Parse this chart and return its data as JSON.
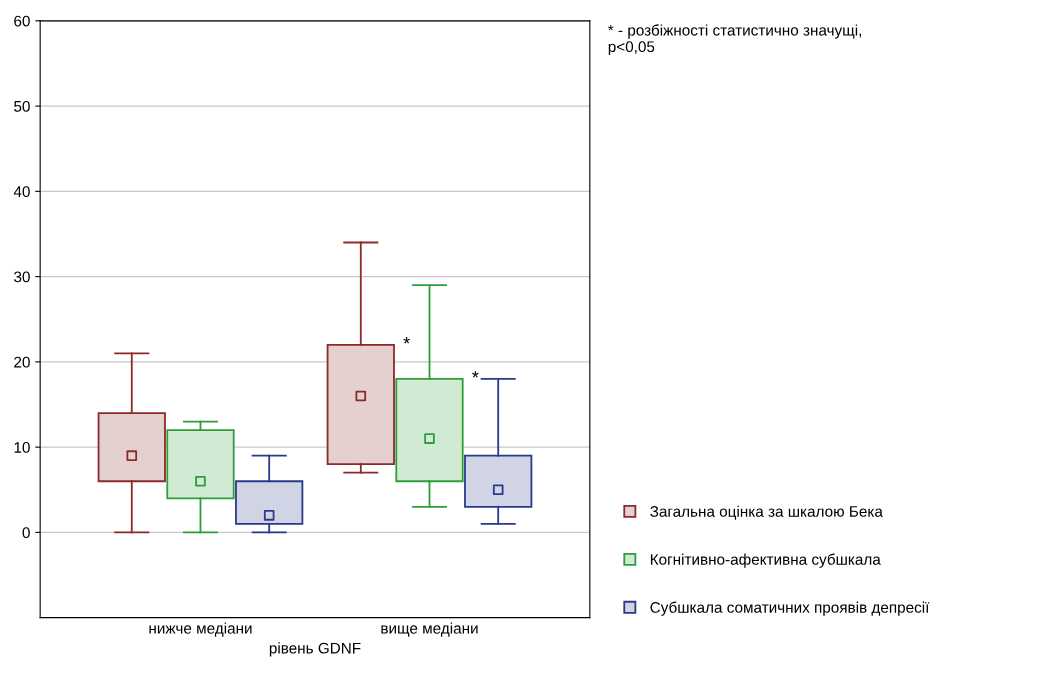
{
  "chart_data": {
    "type": "box",
    "xlabel": "рівень GDNF",
    "categories": [
      "нижче медіани",
      "вище медіани"
    ],
    "ylim": [
      -10,
      60
    ],
    "yticks": [
      0,
      10,
      20,
      30,
      40,
      50,
      60
    ],
    "grid": "y",
    "legend": "bottom right",
    "marker": "square",
    "series": [
      {
        "name": "Загальна оцінка за шкалою Бека",
        "color": "#8b2a2a",
        "boxes": [
          {
            "low": 0,
            "q1": 6,
            "median": 9,
            "q3": 14,
            "high": 21
          },
          {
            "low": 7,
            "q1": 8,
            "median": 16,
            "q3": 22,
            "high": 34
          }
        ]
      },
      {
        "name": "Когнітивно-афективна субшкала",
        "color": "#2e9e3a",
        "boxes": [
          {
            "low": 0,
            "q1": 4,
            "median": 6,
            "q3": 12,
            "high": 13
          },
          {
            "low": 3,
            "q1": 6,
            "median": 11,
            "q3": 18,
            "high": 29
          }
        ]
      },
      {
        "name": "Субшкала соматичних проявів депресії",
        "color": "#2a3a8a",
        "boxes": [
          {
            "low": 0,
            "q1": 1,
            "median": 2,
            "q3": 6,
            "high": 9
          },
          {
            "low": 1,
            "q1": 3,
            "median": 5,
            "q3": 9,
            "high": 18
          }
        ]
      }
    ],
    "annotations": [
      "* - розбіжності статистично значущі,\np<0,05",
      {
        "text": "*",
        "x": "вище медіани",
        "y": 22
      },
      {
        "text": "*",
        "x": "вище медіани",
        "y": 18
      }
    ]
  }
}
